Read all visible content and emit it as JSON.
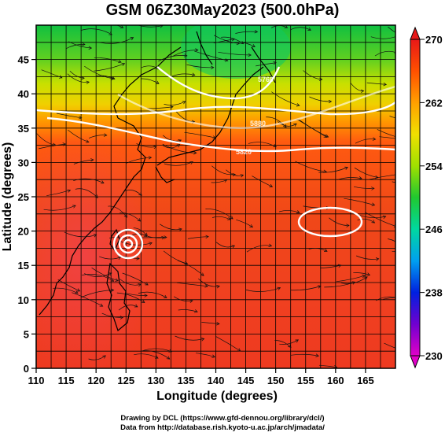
{
  "title": "GSM 06Z30May2023 (500.0hPa)",
  "xlabel": "Longitude (degrees)",
  "ylabel": "Latitude (degrees)",
  "xticks": [
    "110",
    "115",
    "120",
    "125",
    "130",
    "135",
    "140",
    "145",
    "150",
    "155",
    "160",
    "165"
  ],
  "yticks": [
    "0",
    "5",
    "10",
    "15",
    "20",
    "25",
    "30",
    "35",
    "40",
    "45"
  ],
  "colorbar": {
    "ticks": [
      "230",
      "238",
      "246",
      "254",
      "262",
      "270"
    ],
    "range": [
      230,
      270
    ],
    "colors": [
      "#e000c8",
      "#7000d0",
      "#0020e0",
      "#00a0f0",
      "#00d8a0",
      "#20c830",
      "#a0e000",
      "#f0e000",
      "#ffa000",
      "#ff5000",
      "#e81818"
    ]
  },
  "contour_labels": [
    "5880",
    "5820",
    "5760"
  ],
  "credits": {
    "line1": "Drawing by DCL (https://www.gfd-dennou.org/library/dcl/)",
    "line2": "Data from http://database.rish.kyoto-u.ac.jp/arch/jmadata/"
  }
}
